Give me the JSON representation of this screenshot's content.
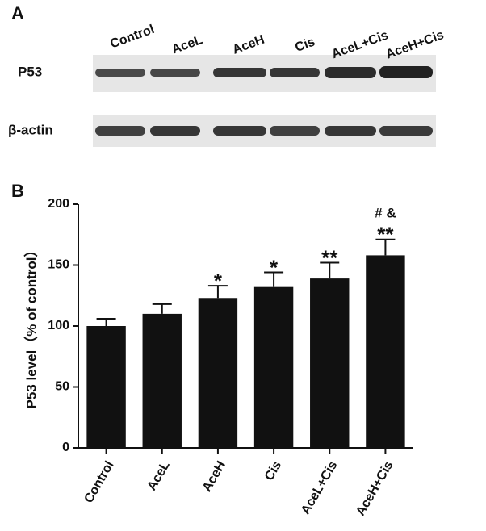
{
  "blot": {
    "panel_label": "A",
    "lanes": [
      "Control",
      "AceL",
      "AceH",
      "Cis",
      "AceL+Cis",
      "AceH+Cis"
    ],
    "rows": [
      "P53",
      "β-actin"
    ]
  },
  "chart_data": {
    "type": "bar",
    "panel_label": "B",
    "y_label": "P53 level（% of control）",
    "categories": [
      "Control",
      "AceL",
      "AceH",
      "Cis",
      "AceL+Cis",
      "AceH+Cis"
    ],
    "values": [
      100,
      110,
      123,
      132,
      139,
      158
    ],
    "errors": [
      6,
      8,
      10,
      12,
      13,
      13
    ],
    "significance": [
      null,
      null,
      "*",
      "*",
      "**",
      "**"
    ],
    "significance_2": [
      null,
      null,
      null,
      null,
      null,
      "# &"
    ],
    "color": "#111111",
    "ylim": [
      0,
      200
    ],
    "yticks": [
      0,
      50,
      100,
      150,
      200
    ],
    "grid": false
  }
}
